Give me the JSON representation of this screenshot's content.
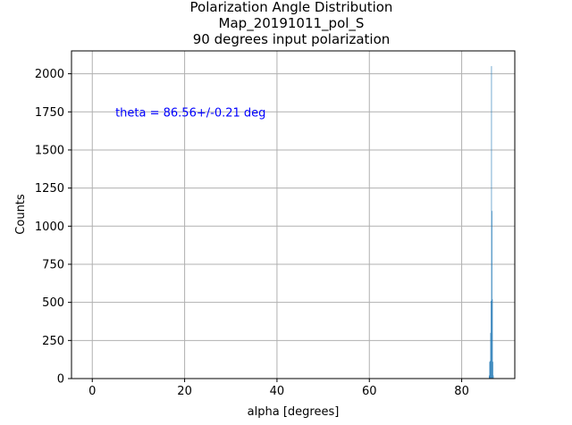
{
  "chart_data": {
    "type": "bar",
    "title_lines": [
      "Polarization Angle Distribution",
      "Map_20191011_pol_S",
      "90 degrees input polarization"
    ],
    "xlabel": "alpha [degrees]",
    "ylabel": "Counts",
    "xlim": [
      -4.5,
      91.5
    ],
    "ylim": [
      0,
      2150
    ],
    "xticks": [
      0,
      20,
      40,
      60,
      80
    ],
    "yticks": [
      0,
      250,
      500,
      750,
      1000,
      1250,
      1500,
      1750,
      2000
    ],
    "grid": true,
    "bar_color": "#1f77b4",
    "annotation": {
      "text": "theta = 86.56+/-0.21 deg",
      "color": "#0000ff",
      "x": 5,
      "y": 1720
    },
    "bins": [
      {
        "x": 85.9,
        "width": 0.1,
        "value": 20
      },
      {
        "x": 86.0,
        "width": 0.1,
        "value": 110
      },
      {
        "x": 86.1,
        "width": 0.1,
        "value": 115
      },
      {
        "x": 86.2,
        "width": 0.1,
        "value": 300
      },
      {
        "x": 86.3,
        "width": 0.1,
        "value": 510
      },
      {
        "x": 86.4,
        "width": 0.1,
        "value": 2050
      },
      {
        "x": 86.5,
        "width": 0.1,
        "value": 1100
      },
      {
        "x": 86.6,
        "width": 0.1,
        "value": 520
      },
      {
        "x": 86.7,
        "width": 0.1,
        "value": 110
      },
      {
        "x": 86.8,
        "width": 0.1,
        "value": 20
      }
    ]
  }
}
